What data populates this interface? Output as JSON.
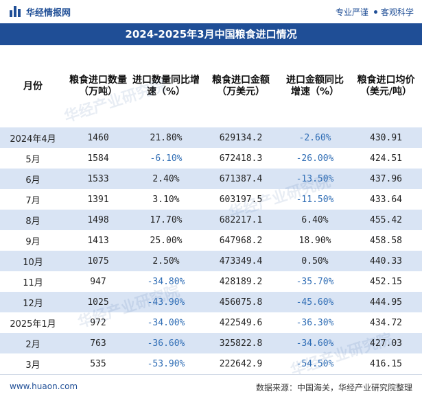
{
  "header": {
    "brand": "华经情报网",
    "slogan_left": "专业严谨",
    "slogan_right": "客观科学"
  },
  "title": "2024-2025年3月中国粮食进口情况",
  "columns": [
    "月份",
    "粮食进口数量（万吨）",
    "进口数量同比增速（%）",
    "粮食进口金额（万美元）",
    "进口金额同比增速（%）",
    "粮食进口均价（美元/吨）"
  ],
  "rows": [
    [
      "2024年4月",
      "1460",
      "21.80%",
      "629134.2",
      "-2.60%",
      "430.91"
    ],
    [
      "5月",
      "1584",
      "-6.10%",
      "672418.3",
      "-26.00%",
      "424.51"
    ],
    [
      "6月",
      "1533",
      "2.40%",
      "671387.4",
      "-13.50%",
      "437.96"
    ],
    [
      "7月",
      "1391",
      "3.10%",
      "603197.5",
      "-11.50%",
      "433.64"
    ],
    [
      "8月",
      "1498",
      "17.70%",
      "682217.1",
      "6.40%",
      "455.42"
    ],
    [
      "9月",
      "1413",
      "25.00%",
      "647968.2",
      "18.90%",
      "458.58"
    ],
    [
      "10月",
      "1075",
      "2.50%",
      "473349.4",
      "0.50%",
      "440.33"
    ],
    [
      "11月",
      "947",
      "-34.80%",
      "428189.2",
      "-35.70%",
      "452.15"
    ],
    [
      "12月",
      "1025",
      "-43.90%",
      "456075.8",
      "-45.60%",
      "444.95"
    ],
    [
      "2025年1月",
      "972",
      "-34.00%",
      "422549.6",
      "-36.30%",
      "434.72"
    ],
    [
      "2月",
      "763",
      "-36.60%",
      "325822.8",
      "-34.60%",
      "427.03"
    ],
    [
      "3月",
      "535",
      "-53.90%",
      "222642.9",
      "-54.50%",
      "416.15"
    ]
  ],
  "footer": {
    "url": "www.huaon.com",
    "source": "数据来源：中国海关，华经产业研究院整理"
  },
  "watermark": "华经产业研究院",
  "colors": {
    "brand_blue": "#1f4e96",
    "stripe": "#d9e4f4",
    "negative": "#2f6db5"
  }
}
